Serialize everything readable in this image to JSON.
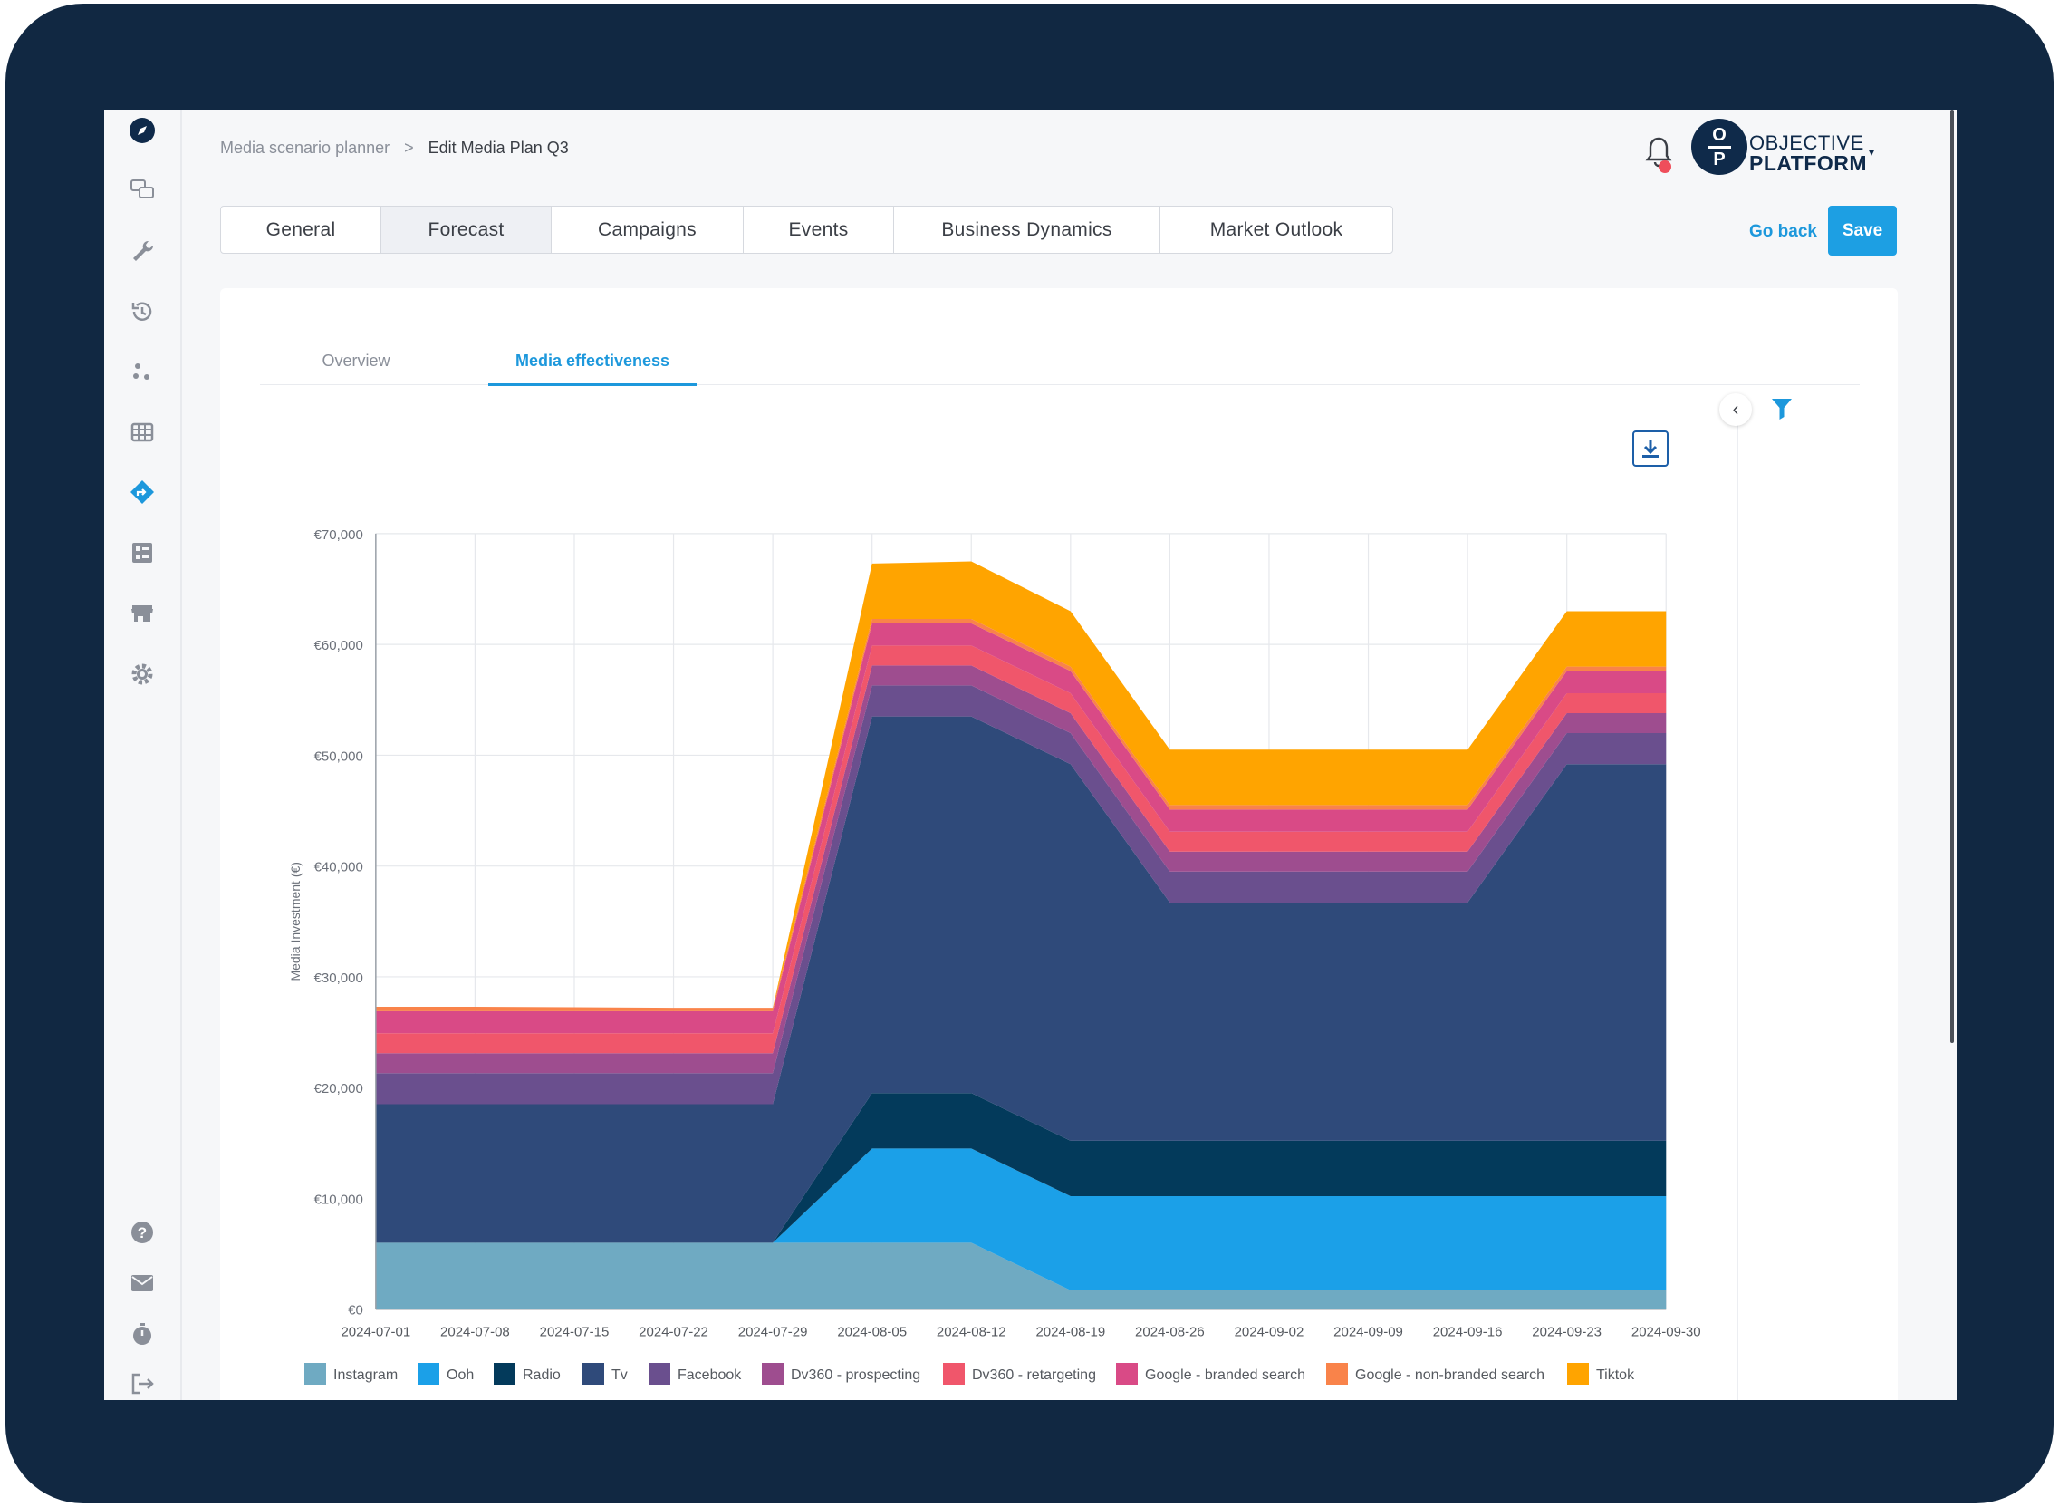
{
  "breadcrumb": {
    "parent": "Media scenario planner",
    "separator": ">",
    "current": "Edit Media Plan Q3"
  },
  "logo": {
    "line1": "OBJECTIVE",
    "line2": "PLATFORM",
    "mark_top": "O",
    "mark_bottom": "P"
  },
  "tabs": [
    "General",
    "Forecast",
    "Campaigns",
    "Events",
    "Business Dynamics",
    "Market Outlook"
  ],
  "active_tab": "Forecast",
  "actions": {
    "go_back": "Go back",
    "save": "Save"
  },
  "subtabs": [
    "Overview",
    "Media effectiveness"
  ],
  "active_subtab": "Media effectiveness",
  "sidebar_icons": [
    "compass-icon",
    "chat-icon",
    "wrench-icon",
    "history-icon",
    "scatter-icon",
    "table-icon",
    "route-icon",
    "dashboard-icon",
    "store-icon",
    "settings-icon",
    "help-icon",
    "mail-icon",
    "timer-icon",
    "logout-icon"
  ],
  "colors": {
    "accent": "#1d9fe3",
    "frame": "#112842"
  },
  "chart_data": {
    "type": "area",
    "stacked": true,
    "ylabel": "Media Investment (€)",
    "xlabel": "",
    "ylim": [
      0,
      70000
    ],
    "yticks": [
      "€0",
      "€10,000",
      "€20,000",
      "€30,000",
      "€40,000",
      "€50,000",
      "€60,000",
      "€70,000"
    ],
    "x": [
      "2024-07-01",
      "2024-07-08",
      "2024-07-15",
      "2024-07-22",
      "2024-07-29",
      "2024-08-05",
      "2024-08-12",
      "2024-08-19",
      "2024-08-26",
      "2024-09-02",
      "2024-09-09",
      "2024-09-16",
      "2024-09-23",
      "2024-09-30"
    ],
    "legend_position": "bottom",
    "grid": true,
    "series": [
      {
        "name": "Instagram",
        "color": "#6faac2",
        "values": [
          6000,
          6000,
          6000,
          6000,
          6000,
          6000,
          6000,
          1700,
          1700,
          1700,
          1700,
          1700,
          1700,
          1700
        ]
      },
      {
        "name": "Ooh",
        "color": "#1ba0e8",
        "values": [
          0,
          0,
          0,
          0,
          0,
          8500,
          8500,
          8500,
          8500,
          8500,
          8500,
          8500,
          8500,
          8500
        ]
      },
      {
        "name": "Radio",
        "color": "#033a5b",
        "values": [
          0,
          0,
          0,
          0,
          0,
          5000,
          5000,
          5000,
          5000,
          5000,
          5000,
          5000,
          5000,
          5000
        ]
      },
      {
        "name": "Tv",
        "color": "#2f4a7a",
        "values": [
          12500,
          12500,
          12500,
          12500,
          12500,
          34000,
          34000,
          34000,
          21500,
          21500,
          21500,
          21500,
          34000,
          34000
        ]
      },
      {
        "name": "Facebook",
        "color": "#6a4f8e",
        "values": [
          2800,
          2800,
          2800,
          2800,
          2800,
          2800,
          2800,
          2800,
          2800,
          2800,
          2800,
          2800,
          2800,
          2800
        ]
      },
      {
        "name": "Dv360 - prospecting",
        "color": "#9e4d8f",
        "values": [
          1800,
          1800,
          1800,
          1800,
          1800,
          1800,
          1800,
          1800,
          1800,
          1800,
          1800,
          1800,
          1800,
          1800
        ]
      },
      {
        "name": "Dv360 - retargeting",
        "color": "#f0566b",
        "values": [
          1800,
          1800,
          1800,
          1800,
          1800,
          1800,
          1800,
          1800,
          1800,
          1800,
          1800,
          1800,
          1800,
          1800
        ]
      },
      {
        "name": "Google - branded search",
        "color": "#d94a86",
        "values": [
          2000,
          2000,
          2000,
          2000,
          2000,
          2000,
          2000,
          2000,
          2000,
          2000,
          2000,
          2000,
          2000,
          2000
        ]
      },
      {
        "name": "Google - non-branded search",
        "color": "#f9834a",
        "values": [
          400,
          400,
          350,
          300,
          300,
          400,
          400,
          400,
          400,
          400,
          400,
          400,
          400,
          400
        ]
      },
      {
        "name": "Tiktok",
        "color": "#ffa400",
        "values": [
          0,
          0,
          0,
          0,
          0,
          5000,
          5200,
          5000,
          5000,
          5000,
          5000,
          5000,
          5000,
          5000
        ]
      }
    ]
  }
}
